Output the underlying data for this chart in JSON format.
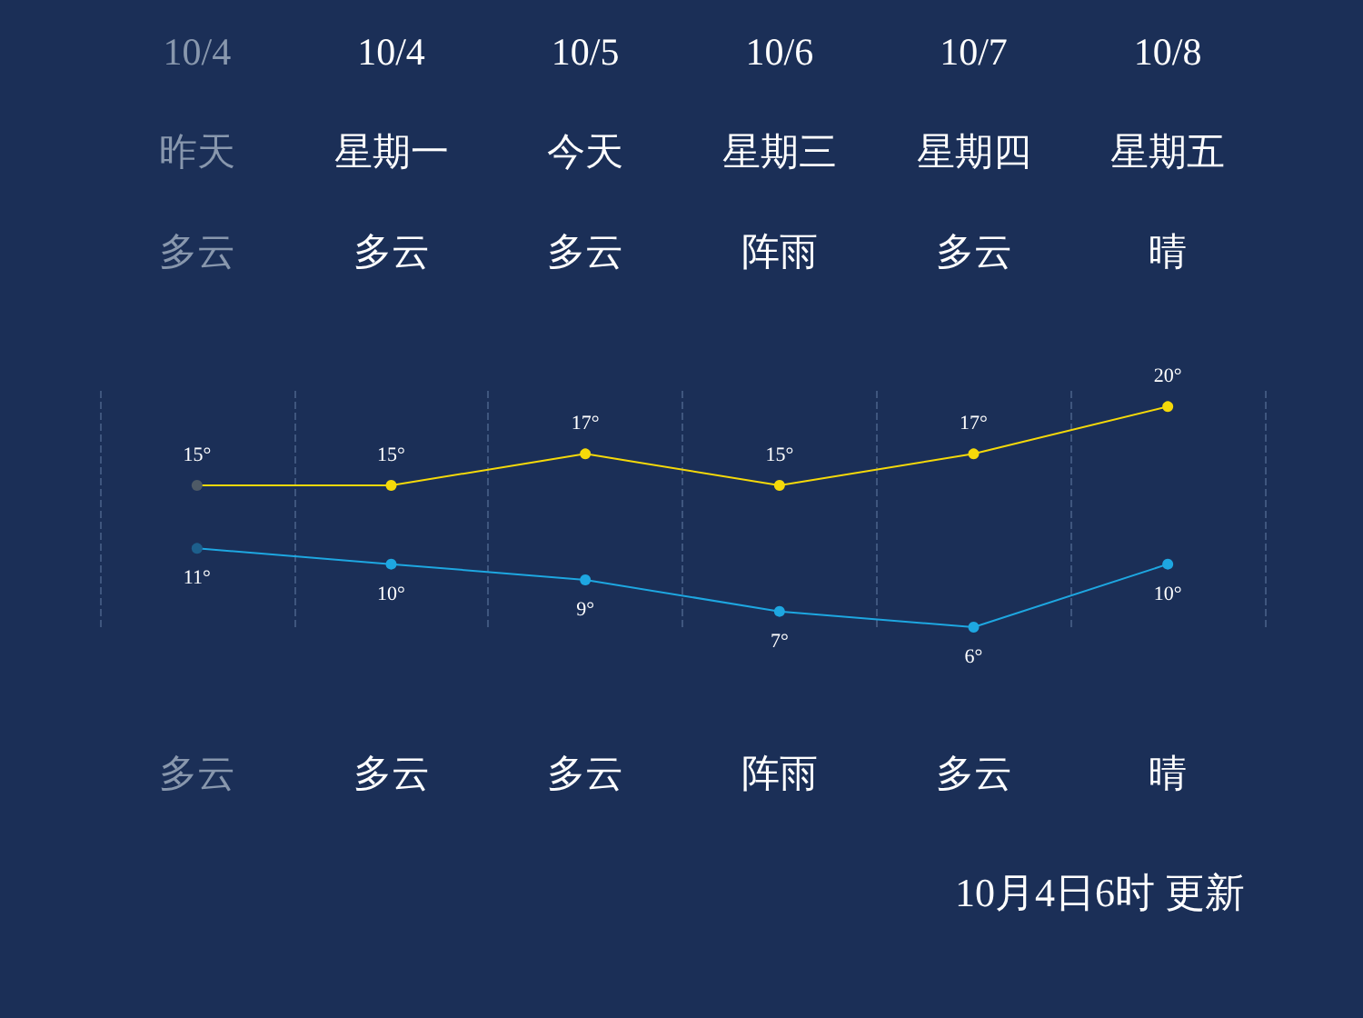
{
  "chart_data": {
    "type": "line",
    "categories": [
      "10/4",
      "10/4",
      "10/5",
      "10/6",
      "10/7",
      "10/8"
    ],
    "series": [
      {
        "color": "#f5d90a",
        "colors": [
          "#4e5a66",
          "#f5d90a",
          "#f5d90a",
          "#f5d90a",
          "#f5d90a",
          "#f5d90a"
        ],
        "values": [
          15,
          15,
          17,
          15,
          17,
          20
        ],
        "value_labels": [
          "15°",
          "15°",
          "17°",
          "15°",
          "17°",
          "20°"
        ]
      },
      {
        "color": "#1ea7e1",
        "colors": [
          "#1d5f8c",
          "#1ea7e1",
          "#1ea7e1",
          "#1ea7e1",
          "#1ea7e1",
          "#1ea7e1"
        ],
        "values": [
          11,
          10,
          9,
          7,
          6,
          10
        ],
        "value_labels": [
          "11°",
          "10°",
          "9°",
          "7°",
          "6°",
          "10°"
        ]
      }
    ],
    "tick_labels": "x",
    "grid": "x",
    "marker": "circle",
    "line_style": "solid",
    "annotations": [
      "昨天",
      "星期一",
      "今天",
      "星期三",
      "星期四",
      "星期五",
      "多云",
      "多云",
      "多云",
      "阵雨",
      "多云",
      "晴",
      "多云",
      "多云",
      "多云",
      "阵雨",
      "多云",
      "晴",
      "10月4日6时 更新"
    ]
  }
}
